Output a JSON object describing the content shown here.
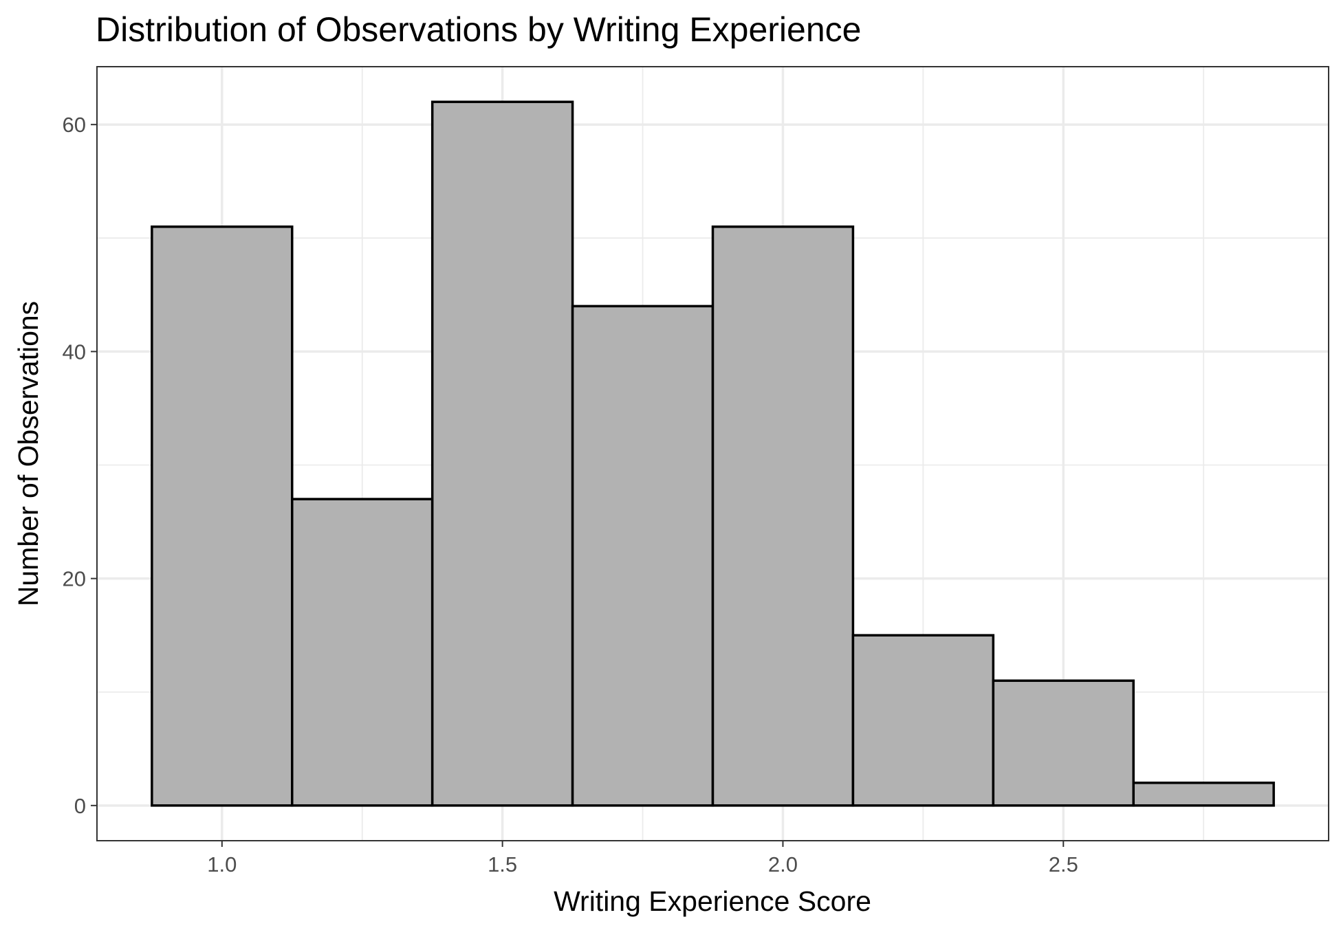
{
  "chart_data": {
    "type": "bar",
    "title": "Distribution of Observations by Writing Experience",
    "xlabel": "Writing Experience Score",
    "ylabel": "Number of Observations",
    "bin_width": 0.25,
    "bins": [
      {
        "start": 0.875,
        "end": 1.125,
        "count": 51
      },
      {
        "start": 1.125,
        "end": 1.375,
        "count": 27
      },
      {
        "start": 1.375,
        "end": 1.625,
        "count": 62
      },
      {
        "start": 1.625,
        "end": 1.875,
        "count": 44
      },
      {
        "start": 1.875,
        "end": 2.125,
        "count": 51
      },
      {
        "start": 2.125,
        "end": 2.375,
        "count": 15
      },
      {
        "start": 2.375,
        "end": 2.625,
        "count": 11
      },
      {
        "start": 2.625,
        "end": 2.875,
        "count": 2
      }
    ],
    "xlim": [
      0.7771,
      2.9729
    ],
    "ylim": [
      -3.1,
      65.1
    ],
    "x_ticks": [
      {
        "value": 1.0,
        "label": "1.0"
      },
      {
        "value": 1.5,
        "label": "1.5"
      },
      {
        "value": 2.0,
        "label": "2.0"
      },
      {
        "value": 2.5,
        "label": "2.5"
      }
    ],
    "x_minor_ticks": [
      1.25,
      1.75,
      2.25,
      2.75
    ],
    "y_ticks": [
      {
        "value": 0,
        "label": "0"
      },
      {
        "value": 20,
        "label": "20"
      },
      {
        "value": 40,
        "label": "40"
      },
      {
        "value": 60,
        "label": "60"
      }
    ],
    "y_minor_ticks": [
      10,
      30,
      50
    ],
    "grid": true,
    "legend": "none",
    "colors": {
      "bar_fill": "#b2b2b2",
      "bar_outline": "#000000",
      "grid": "#ebebeb",
      "panel_border": "#333333",
      "tick_label": "#4d4d4d"
    }
  }
}
